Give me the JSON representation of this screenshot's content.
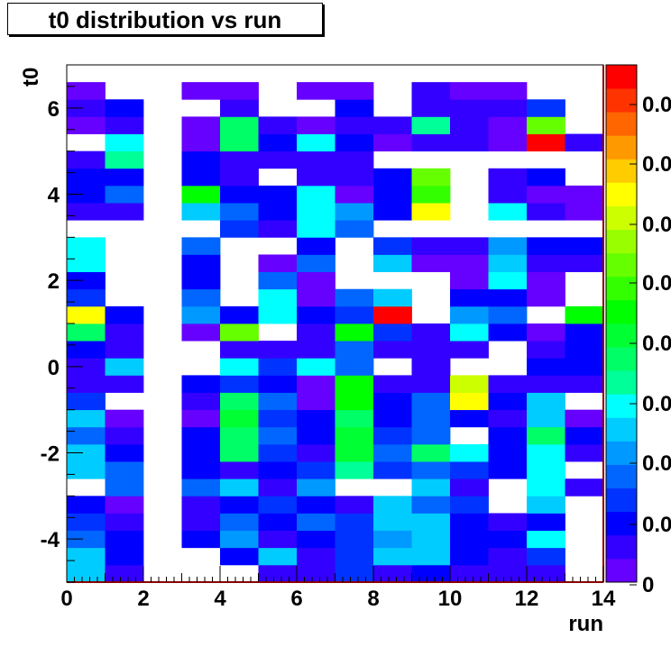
{
  "chart_data": {
    "type": "heatmap",
    "title": "t0 distribution vs run",
    "xlabel": "run",
    "ylabel": "t0",
    "xlim": [
      0,
      14
    ],
    "ylim": [
      -5,
      7
    ],
    "x_bin_width": 1,
    "y_bin_width": 0.4,
    "x_ticks": [
      "0",
      "2",
      "4",
      "6",
      "8",
      "10",
      "12",
      "14"
    ],
    "y_ticks": [
      "-4",
      "-2",
      "0",
      "2",
      "4",
      "6"
    ],
    "colorbar_labels": [
      "0",
      "0.0",
      "0.0",
      "0.0",
      "0.0",
      "0.0",
      "0.0",
      "0.0",
      "0.0",
      "0.0"
    ],
    "palette": [
      "#6600ff",
      "#3300ff",
      "#0000ff",
      "#0033ff",
      "#0066ff",
      "#0099ff",
      "#00ccff",
      "#00ffff",
      "#00ff99",
      "#00ff66",
      "#00ff33",
      "#00ff00",
      "#33ff00",
      "#66ff00",
      "#99ff00",
      "#ccff00",
      "#ffff00",
      "#ffcc00",
      "#ff9900",
      "#ff6600",
      "#ff3300",
      "#ff0000"
    ],
    "color_levels_by_row_bottom_to_top": [
      [
        6,
        1,
        null,
        null,
        null,
        1,
        1,
        3,
        1,
        2,
        1,
        1,
        1,
        null
      ],
      [
        6,
        2,
        null,
        null,
        2,
        6,
        1,
        3,
        6,
        6,
        2,
        1,
        3,
        null
      ],
      [
        4,
        2,
        null,
        2,
        5,
        1,
        2,
        3,
        5,
        6,
        2,
        2,
        7,
        null
      ],
      [
        3,
        1,
        null,
        1,
        4,
        2,
        4,
        3,
        6,
        6,
        2,
        1,
        2,
        null
      ],
      [
        2,
        0,
        null,
        1,
        2,
        3,
        2,
        1,
        6,
        4,
        3,
        null,
        6,
        null
      ],
      [
        null,
        4,
        null,
        4,
        6,
        1,
        5,
        null,
        null,
        6,
        1,
        null,
        7,
        1
      ],
      [
        6,
        4,
        null,
        2,
        1,
        2,
        3,
        8,
        3,
        4,
        3,
        2,
        7,
        null
      ],
      [
        6,
        2,
        null,
        2,
        9,
        3,
        1,
        10,
        4,
        9,
        7,
        2,
        7,
        1
      ],
      [
        4,
        1,
        null,
        2,
        9,
        4,
        2,
        10,
        3,
        4,
        null,
        2,
        9,
        2
      ],
      [
        6,
        0,
        null,
        0,
        10,
        3,
        2,
        9,
        2,
        4,
        2,
        1,
        6,
        0
      ],
      [
        3,
        null,
        null,
        1,
        9,
        4,
        0,
        11,
        2,
        4,
        16,
        2,
        6,
        null
      ],
      [
        1,
        1,
        null,
        2,
        3,
        2,
        0,
        11,
        1,
        1,
        15,
        1,
        1,
        1
      ],
      [
        1,
        6,
        null,
        null,
        7,
        3,
        7,
        4,
        null,
        1,
        null,
        null,
        2,
        2
      ],
      [
        2,
        1,
        null,
        null,
        1,
        1,
        1,
        4,
        1,
        1,
        1,
        null,
        1,
        2
      ],
      [
        9,
        1,
        null,
        0,
        13,
        null,
        1,
        11,
        3,
        1,
        7,
        2,
        0,
        2
      ],
      [
        16,
        2,
        null,
        5,
        2,
        7,
        2,
        3,
        21,
        null,
        5,
        4,
        null,
        11
      ],
      [
        3,
        null,
        null,
        4,
        null,
        7,
        0,
        4,
        6,
        null,
        2,
        2,
        0,
        null
      ],
      [
        2,
        null,
        null,
        2,
        null,
        4,
        0,
        null,
        null,
        null,
        0,
        7,
        0,
        null
      ],
      [
        7,
        null,
        null,
        2,
        null,
        0,
        4,
        null,
        6,
        0,
        0,
        6,
        1,
        1
      ],
      [
        7,
        null,
        null,
        4,
        null,
        null,
        2,
        null,
        3,
        1,
        1,
        5,
        2,
        2
      ],
      [
        null,
        null,
        null,
        null,
        3,
        1,
        7,
        4,
        null,
        null,
        null,
        null,
        null,
        null
      ],
      [
        1,
        1,
        null,
        6,
        4,
        2,
        7,
        5,
        2,
        16,
        null,
        7,
        1,
        0
      ],
      [
        2,
        4,
        null,
        11,
        2,
        2,
        7,
        0,
        2,
        12,
        null,
        1,
        0,
        0
      ],
      [
        2,
        2,
        null,
        2,
        1,
        null,
        1,
        1,
        2,
        13,
        null,
        1,
        2,
        null
      ],
      [
        1,
        8,
        null,
        2,
        1,
        1,
        1,
        1,
        null,
        null,
        null,
        null,
        null,
        null
      ],
      [
        null,
        7,
        null,
        0,
        9,
        2,
        7,
        2,
        0,
        1,
        1,
        0,
        21,
        1
      ],
      [
        0,
        1,
        null,
        0,
        9,
        1,
        0,
        1,
        1,
        8,
        1,
        0,
        13,
        null
      ],
      [
        1,
        2,
        null,
        null,
        1,
        null,
        null,
        2,
        null,
        1,
        1,
        1,
        3,
        null
      ],
      [
        0,
        null,
        null,
        0,
        0,
        null,
        0,
        0,
        null,
        1,
        0,
        0,
        null,
        null
      ]
    ]
  }
}
